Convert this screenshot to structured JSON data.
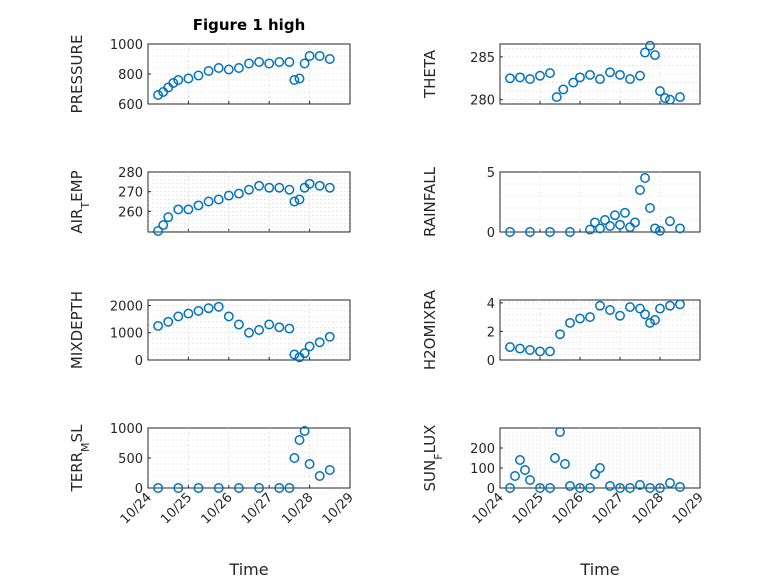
{
  "figure": {
    "title": "Figure 1 high"
  },
  "colors": {
    "marker": "#0072BD",
    "axes": "#262626",
    "grid": "#cfcfcf"
  },
  "chart_data": [
    {
      "type": "scatter",
      "title": "Figure 1 high",
      "xlabel": "",
      "ylabel": "PRESSURE",
      "xlim": [
        "2020-10-24",
        "2020-10-29"
      ],
      "ylim": [
        600,
        1000
      ],
      "xticks": [
        "10/24",
        "10/25",
        "10/26",
        "10/27",
        "10/28",
        "10/29"
      ],
      "show_xticklabels": false,
      "yticks": [
        600,
        800,
        1000
      ],
      "grid": true,
      "x": [
        "2020-10-24T06:00",
        "2020-10-24T09:00",
        "2020-10-24T12:00",
        "2020-10-24T15:00",
        "2020-10-24T18:00",
        "2020-10-25T00:00",
        "2020-10-25T06:00",
        "2020-10-25T12:00",
        "2020-10-25T18:00",
        "2020-10-26T00:00",
        "2020-10-26T06:00",
        "2020-10-26T12:00",
        "2020-10-26T18:00",
        "2020-10-27T00:00",
        "2020-10-27T06:00",
        "2020-10-27T12:00",
        "2020-10-27T15:00",
        "2020-10-27T18:00",
        "2020-10-27T21:00",
        "2020-10-28T00:00",
        "2020-10-28T06:00",
        "2020-10-28T12:00"
      ],
      "y": [
        660,
        680,
        710,
        740,
        760,
        770,
        790,
        820,
        840,
        830,
        840,
        870,
        880,
        870,
        880,
        880,
        760,
        770,
        870,
        920,
        920,
        900
      ]
    },
    {
      "type": "scatter",
      "xlabel": "",
      "ylabel": "THETA",
      "xlim": [
        "2020-10-24",
        "2020-10-29"
      ],
      "ylim": [
        279.5,
        286.5
      ],
      "xticks": [
        "10/24",
        "10/25",
        "10/26",
        "10/27",
        "10/28",
        "10/29"
      ],
      "show_xticklabels": false,
      "yticks": [
        280,
        285
      ],
      "grid": true,
      "x": [
        "2020-10-24T06:00",
        "2020-10-24T12:00",
        "2020-10-24T18:00",
        "2020-10-25T00:00",
        "2020-10-25T06:00",
        "2020-10-25T10:00",
        "2020-10-25T14:00",
        "2020-10-25T20:00",
        "2020-10-26T00:00",
        "2020-10-26T06:00",
        "2020-10-26T12:00",
        "2020-10-26T18:00",
        "2020-10-27T00:00",
        "2020-10-27T06:00",
        "2020-10-27T12:00",
        "2020-10-27T15:00",
        "2020-10-27T18:00",
        "2020-10-27T21:00",
        "2020-10-28T00:00",
        "2020-10-28T03:00",
        "2020-10-28T06:00",
        "2020-10-28T12:00"
      ],
      "y": [
        282.5,
        282.6,
        282.4,
        282.8,
        283.1,
        280.3,
        281.2,
        282.0,
        282.6,
        282.9,
        282.4,
        283.2,
        282.9,
        282.4,
        282.8,
        285.5,
        286.3,
        285.2,
        281.0,
        280.2,
        280.0,
        280.3
      ]
    },
    {
      "type": "scatter",
      "xlabel": "",
      "ylabel": "AIR_TEMP",
      "xlim": [
        "2020-10-24",
        "2020-10-29"
      ],
      "ylim": [
        249.5,
        280
      ],
      "xticks": [
        "10/24",
        "10/25",
        "10/26",
        "10/27",
        "10/28",
        "10/29"
      ],
      "show_xticklabels": false,
      "yticks": [
        260,
        270,
        280
      ],
      "grid": true,
      "x": [
        "2020-10-24T06:00",
        "2020-10-24T09:00",
        "2020-10-24T12:00",
        "2020-10-24T18:00",
        "2020-10-25T00:00",
        "2020-10-25T06:00",
        "2020-10-25T12:00",
        "2020-10-25T18:00",
        "2020-10-26T00:00",
        "2020-10-26T06:00",
        "2020-10-26T12:00",
        "2020-10-26T18:00",
        "2020-10-27T00:00",
        "2020-10-27T06:00",
        "2020-10-27T12:00",
        "2020-10-27T15:00",
        "2020-10-27T18:00",
        "2020-10-27T21:00",
        "2020-10-28T00:00",
        "2020-10-28T06:00",
        "2020-10-28T12:00"
      ],
      "y": [
        250,
        253,
        257,
        261,
        261,
        263,
        265,
        266,
        268,
        269,
        271,
        273,
        272,
        272,
        271,
        265,
        266,
        272,
        274,
        273,
        272
      ]
    },
    {
      "type": "scatter",
      "xlabel": "",
      "ylabel": "RAINFALL",
      "xlim": [
        "2020-10-24",
        "2020-10-29"
      ],
      "ylim": [
        0,
        5
      ],
      "xticks": [
        "10/24",
        "10/25",
        "10/26",
        "10/27",
        "10/28",
        "10/29"
      ],
      "show_xticklabels": false,
      "yticks": [
        0,
        5
      ],
      "grid": true,
      "x": [
        "2020-10-24T06:00",
        "2020-10-24T18:00",
        "2020-10-25T06:00",
        "2020-10-25T18:00",
        "2020-10-26T06:00",
        "2020-10-26T09:00",
        "2020-10-26T12:00",
        "2020-10-26T15:00",
        "2020-10-26T18:00",
        "2020-10-26T21:00",
        "2020-10-27T00:00",
        "2020-10-27T03:00",
        "2020-10-27T06:00",
        "2020-10-27T09:00",
        "2020-10-27T12:00",
        "2020-10-27T15:00",
        "2020-10-27T18:00",
        "2020-10-27T21:00",
        "2020-10-28T00:00",
        "2020-10-28T06:00",
        "2020-10-28T12:00"
      ],
      "y": [
        0,
        0,
        0,
        0,
        0.2,
        0.8,
        0.3,
        1.0,
        0.5,
        1.4,
        0.6,
        1.6,
        0.4,
        0.8,
        3.5,
        4.5,
        2.0,
        0.3,
        0.1,
        0.9,
        0.3
      ]
    },
    {
      "type": "scatter",
      "xlabel": "",
      "ylabel": "MIXDEPTH",
      "xlim": [
        "2020-10-24",
        "2020-10-29"
      ],
      "ylim": [
        0,
        2200
      ],
      "xticks": [
        "10/24",
        "10/25",
        "10/26",
        "10/27",
        "10/28",
        "10/29"
      ],
      "show_xticklabels": false,
      "yticks": [
        0,
        1000,
        2000
      ],
      "grid": true,
      "x": [
        "2020-10-24T06:00",
        "2020-10-24T12:00",
        "2020-10-24T18:00",
        "2020-10-25T00:00",
        "2020-10-25T06:00",
        "2020-10-25T12:00",
        "2020-10-25T18:00",
        "2020-10-26T00:00",
        "2020-10-26T06:00",
        "2020-10-26T12:00",
        "2020-10-26T18:00",
        "2020-10-27T00:00",
        "2020-10-27T06:00",
        "2020-10-27T12:00",
        "2020-10-27T15:00",
        "2020-10-27T18:00",
        "2020-10-27T21:00",
        "2020-10-28T00:00",
        "2020-10-28T06:00",
        "2020-10-28T12:00"
      ],
      "y": [
        1250,
        1400,
        1600,
        1700,
        1800,
        1900,
        1950,
        1600,
        1300,
        1000,
        1100,
        1300,
        1200,
        1150,
        200,
        100,
        250,
        500,
        650,
        850
      ]
    },
    {
      "type": "scatter",
      "xlabel": "",
      "ylabel": "H2OMIXRA",
      "xlim": [
        "2020-10-24",
        "2020-10-29"
      ],
      "ylim": [
        0,
        4.2
      ],
      "xticks": [
        "10/24",
        "10/25",
        "10/26",
        "10/27",
        "10/28",
        "10/29"
      ],
      "show_xticklabels": false,
      "yticks": [
        0,
        2,
        4
      ],
      "grid": true,
      "x": [
        "2020-10-24T06:00",
        "2020-10-24T12:00",
        "2020-10-24T18:00",
        "2020-10-25T00:00",
        "2020-10-25T06:00",
        "2020-10-25T12:00",
        "2020-10-25T18:00",
        "2020-10-26T00:00",
        "2020-10-26T06:00",
        "2020-10-26T12:00",
        "2020-10-26T18:00",
        "2020-10-27T00:00",
        "2020-10-27T06:00",
        "2020-10-27T12:00",
        "2020-10-27T15:00",
        "2020-10-27T18:00",
        "2020-10-27T21:00",
        "2020-10-28T00:00",
        "2020-10-28T06:00",
        "2020-10-28T12:00"
      ],
      "y": [
        0.9,
        0.8,
        0.7,
        0.6,
        0.6,
        1.8,
        2.6,
        2.9,
        3.0,
        3.8,
        3.5,
        3.1,
        3.7,
        3.6,
        3.2,
        2.6,
        2.8,
        3.6,
        3.8,
        3.9
      ]
    },
    {
      "type": "scatter",
      "xlabel": "Time",
      "ylabel": "TERR_MSL",
      "xlim": [
        "2020-10-24",
        "2020-10-29"
      ],
      "ylim": [
        0,
        1000
      ],
      "xticks": [
        "10/24",
        "10/25",
        "10/26",
        "10/27",
        "10/28",
        "10/29"
      ],
      "show_xticklabels": true,
      "yticks": [
        0,
        500,
        1000
      ],
      "grid": true,
      "x": [
        "2020-10-24T06:00",
        "2020-10-24T18:00",
        "2020-10-25T06:00",
        "2020-10-25T18:00",
        "2020-10-26T06:00",
        "2020-10-26T18:00",
        "2020-10-27T06:00",
        "2020-10-27T12:00",
        "2020-10-27T15:00",
        "2020-10-27T18:00",
        "2020-10-27T21:00",
        "2020-10-28T00:00",
        "2020-10-28T06:00",
        "2020-10-28T12:00"
      ],
      "y": [
        0,
        0,
        0,
        0,
        0,
        0,
        0,
        0,
        500,
        800,
        950,
        400,
        200,
        300
      ]
    },
    {
      "type": "scatter",
      "xlabel": "Time",
      "ylabel": "SUN_FLUX",
      "xlim": [
        "2020-10-24",
        "2020-10-29"
      ],
      "ylim": [
        0,
        300
      ],
      "xticks": [
        "10/24",
        "10/25",
        "10/26",
        "10/27",
        "10/28",
        "10/29"
      ],
      "show_xticklabels": true,
      "yticks": [
        0,
        100,
        200
      ],
      "grid": true,
      "x": [
        "2020-10-24T06:00",
        "2020-10-24T09:00",
        "2020-10-24T12:00",
        "2020-10-24T15:00",
        "2020-10-24T18:00",
        "2020-10-25T00:00",
        "2020-10-25T06:00",
        "2020-10-25T09:00",
        "2020-10-25T12:00",
        "2020-10-25T15:00",
        "2020-10-25T18:00",
        "2020-10-26T00:00",
        "2020-10-26T06:00",
        "2020-10-26T09:00",
        "2020-10-26T12:00",
        "2020-10-26T18:00",
        "2020-10-27T00:00",
        "2020-10-27T06:00",
        "2020-10-27T12:00",
        "2020-10-27T18:00",
        "2020-10-28T00:00",
        "2020-10-28T06:00",
        "2020-10-28T12:00"
      ],
      "y": [
        0,
        60,
        140,
        90,
        40,
        0,
        0,
        150,
        280,
        120,
        10,
        0,
        0,
        70,
        100,
        10,
        0,
        0,
        15,
        0,
        0,
        25,
        5
      ]
    }
  ]
}
